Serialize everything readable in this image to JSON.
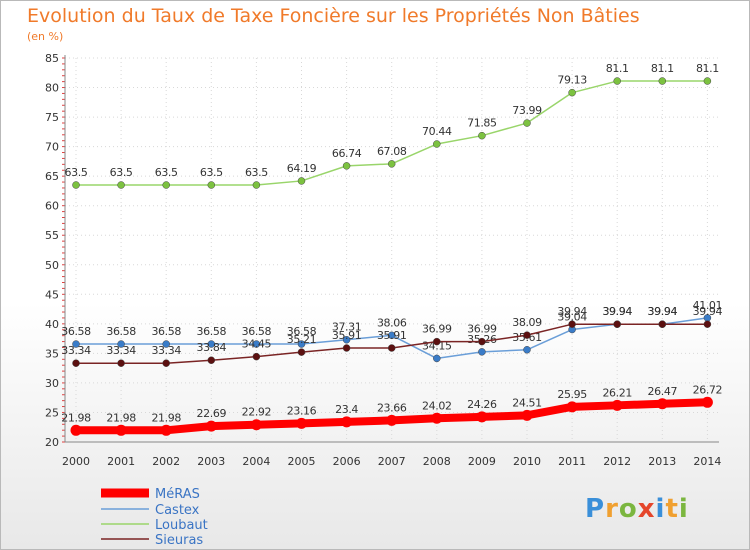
{
  "chart_data": {
    "type": "line",
    "title": "Evolution du Taux de Taxe Foncière sur les Propriétés Non Bâties",
    "subtitle": "(en %)",
    "ylim": [
      20,
      85
    ],
    "yticks": [
      20,
      25,
      30,
      35,
      40,
      45,
      50,
      55,
      60,
      65,
      70,
      75,
      80,
      85
    ],
    "categories": [
      "2000",
      "2001",
      "2002",
      "2003",
      "2004",
      "2005",
      "2006",
      "2007",
      "2008",
      "2009",
      "2010",
      "2011",
      "2012",
      "2013",
      "2014"
    ],
    "grid": true,
    "legend_position": "bottom-left",
    "series": [
      {
        "name": "MéRAS",
        "color": "#ff0000",
        "marker": "#ff0000",
        "values": [
          21.98,
          21.98,
          21.98,
          22.69,
          22.92,
          23.16,
          23.4,
          23.66,
          24.02,
          24.26,
          24.51,
          25.95,
          26.21,
          26.47,
          26.72
        ],
        "labels": [
          "21.98",
          "21.98",
          "21.98",
          "22.69",
          "22.92",
          "23.16",
          "23.4",
          "23.66",
          "24.02",
          "24.26",
          "24.51",
          "25.95",
          "26.21",
          "26.47",
          "26.72"
        ]
      },
      {
        "name": "Castex",
        "color": "#6a9ed8",
        "marker": "#3a7cc8",
        "values": [
          36.58,
          36.58,
          36.58,
          36.58,
          36.58,
          36.58,
          37.31,
          38.06,
          34.15,
          35.26,
          35.61,
          39.04,
          39.94,
          39.94,
          41.01
        ],
        "labels": [
          "36.58",
          "36.58",
          "36.58",
          "36.58",
          "36.58",
          "36.58",
          "37.31",
          "38.06",
          "34.15",
          "35.26",
          "35.61",
          "39.04",
          "39.94",
          "39.94",
          "41.01"
        ]
      },
      {
        "name": "Loubaut",
        "color": "#99d56a",
        "marker": "#7cc240",
        "values": [
          63.5,
          63.5,
          63.5,
          63.5,
          63.5,
          64.19,
          66.74,
          67.08,
          70.44,
          71.85,
          73.99,
          79.13,
          81.1,
          81.1,
          81.1
        ],
        "labels": [
          "63.5",
          "63.5",
          "63.5",
          "63.5",
          "63.5",
          "64.19",
          "66.74",
          "67.08",
          "70.44",
          "71.85",
          "73.99",
          "79.13",
          "81.1",
          "81.1",
          "81.1"
        ]
      },
      {
        "name": "Sieuras",
        "color": "#7a2424",
        "marker": "#5c1010",
        "values": [
          33.34,
          33.34,
          33.34,
          33.84,
          34.45,
          35.21,
          35.91,
          35.91,
          36.99,
          36.99,
          38.09,
          39.94,
          39.94,
          39.94,
          39.94
        ],
        "labels": [
          "33.34",
          "33.34",
          "33.34",
          "33.84",
          "34.45",
          "35.21",
          "35.91",
          "35.91",
          "36.99",
          "36.99",
          "38.09",
          "39.94",
          "39.94",
          "39.94",
          "39.94"
        ]
      }
    ]
  },
  "logo": {
    "letters": [
      "P",
      "r",
      "o",
      "x",
      "i",
      "t",
      "i"
    ]
  }
}
